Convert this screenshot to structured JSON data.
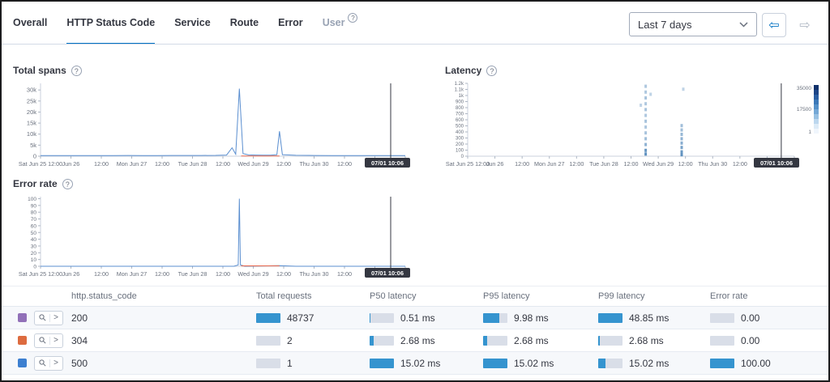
{
  "tabs": {
    "items": [
      {
        "label": "Overall",
        "state": "normal"
      },
      {
        "label": "HTTP Status Code",
        "state": "active"
      },
      {
        "label": "Service",
        "state": "normal"
      },
      {
        "label": "Route",
        "state": "normal"
      },
      {
        "label": "Error",
        "state": "normal"
      },
      {
        "label": "User",
        "state": "disabled",
        "help": "?"
      }
    ]
  },
  "toolbar": {
    "time_range": "Last 7 days",
    "back_icon": "⇦",
    "forward_icon": "⇨"
  },
  "colors": {
    "accent": "#0071C2",
    "bar_fill": "#3594CF",
    "bar_track": "#D9DEE8",
    "line_blue": "#5B8FD0",
    "line_orange": "#E7664C",
    "heat_cell": "#6092C0",
    "cursor": "#343741"
  },
  "chart_data": [
    {
      "id": "total-spans",
      "type": "line",
      "title": "Total spans",
      "help_icon": "?",
      "ymax": 33000,
      "yticks": [
        {
          "v": 30000,
          "label": "30k"
        },
        {
          "v": 25000,
          "label": "25k"
        },
        {
          "v": 20000,
          "label": "20k"
        },
        {
          "v": 15000,
          "label": "15k"
        },
        {
          "v": 10000,
          "label": "10k"
        },
        {
          "v": 5000,
          "label": "5k"
        },
        {
          "v": 0,
          "label": "0"
        }
      ],
      "xlabels": [
        "Sat Jun 25 12:00",
        "Jun 26",
        "12:00",
        "Mon Jun 27",
        "12:00",
        "Tue Jun 28",
        "12:00",
        "Wed Jun 29",
        "12:00",
        "Thu Jun 30",
        "12:00",
        "Jul 01",
        ""
      ],
      "series": [
        {
          "name": "200",
          "color": "#5B8FD0",
          "points": [
            [
              0,
              260
            ],
            [
              0.04,
              300
            ],
            [
              0.08,
              280
            ],
            [
              0.12,
              310
            ],
            [
              0.16,
              290
            ],
            [
              0.2,
              300
            ],
            [
              0.24,
              320
            ],
            [
              0.28,
              300
            ],
            [
              0.32,
              310
            ],
            [
              0.36,
              330
            ],
            [
              0.4,
              320
            ],
            [
              0.44,
              340
            ],
            [
              0.48,
              360
            ],
            [
              0.51,
              500
            ],
            [
              0.525,
              3800
            ],
            [
              0.535,
              900
            ],
            [
              0.545,
              30600
            ],
            [
              0.555,
              1200
            ],
            [
              0.57,
              600
            ],
            [
              0.59,
              500
            ],
            [
              0.61,
              450
            ],
            [
              0.63,
              480
            ],
            [
              0.648,
              700
            ],
            [
              0.655,
              11300
            ],
            [
              0.663,
              700
            ],
            [
              0.7,
              400
            ],
            [
              0.75,
              330
            ],
            [
              0.8,
              300
            ],
            [
              0.85,
              290
            ],
            [
              0.9,
              280
            ],
            [
              0.96,
              270
            ],
            [
              1,
              260
            ]
          ]
        },
        {
          "name": "304",
          "color": "#E7664C",
          "points": [
            [
              0.55,
              60
            ],
            [
              0.6,
              60
            ],
            [
              0.655,
              60
            ]
          ]
        }
      ],
      "cursor": {
        "frac": 0.96,
        "badge": "07/01 10:06"
      }
    },
    {
      "id": "latency",
      "type": "heatmap",
      "title": "Latency",
      "help_icon": "?",
      "yticks": [
        "1.2k",
        "1.1k",
        "1k",
        "900",
        "800",
        "700",
        "600",
        "500",
        "400",
        "300",
        "200",
        "100",
        "0"
      ],
      "xlabels": [
        "Sat Jun 25 12:00",
        "Jun 26",
        "12:00",
        "Mon Jun 27",
        "12:00",
        "Tue Jun 28",
        "12:00",
        "Wed Jun 29",
        "12:00",
        "Thu Jun 30",
        "12:00",
        "Jul 01",
        ""
      ],
      "cells": [
        [
          0.545,
          0.04,
          0.5
        ],
        [
          0.545,
          0.12,
          0.5
        ],
        [
          0.545,
          0.2,
          0.55
        ],
        [
          0.545,
          0.28,
          0.5
        ],
        [
          0.545,
          0.36,
          0.55
        ],
        [
          0.545,
          0.44,
          0.5
        ],
        [
          0.545,
          0.52,
          0.55
        ],
        [
          0.545,
          0.6,
          0.5
        ],
        [
          0.545,
          0.68,
          0.55
        ],
        [
          0.545,
          0.76,
          0.6
        ],
        [
          0.545,
          0.84,
          0.7
        ],
        [
          0.545,
          0.92,
          0.95
        ],
        [
          0.545,
          0.97,
          1
        ],
        [
          0.655,
          0.58,
          0.6
        ],
        [
          0.655,
          0.64,
          0.6
        ],
        [
          0.655,
          0.7,
          0.65
        ],
        [
          0.655,
          0.76,
          0.7
        ],
        [
          0.655,
          0.82,
          0.75
        ],
        [
          0.655,
          0.88,
          0.85
        ],
        [
          0.655,
          0.94,
          0.95
        ],
        [
          0.655,
          0.98,
          1
        ],
        [
          0.53,
          0.3,
          0.4
        ],
        [
          0.56,
          0.15,
          0.4
        ],
        [
          0.66,
          0.08,
          0.4
        ]
      ],
      "legend": {
        "max": "35000",
        "mid": "17500",
        "min": "1"
      },
      "cursor": {
        "frac": 0.96,
        "badge": "07/01 10:06"
      }
    },
    {
      "id": "error-rate",
      "type": "line",
      "title": "Error rate",
      "help_icon": "?",
      "ymax": 103,
      "yticks": [
        {
          "v": 100,
          "label": "100"
        },
        {
          "v": 90,
          "label": "90"
        },
        {
          "v": 80,
          "label": "80"
        },
        {
          "v": 70,
          "label": "70"
        },
        {
          "v": 60,
          "label": "60"
        },
        {
          "v": 50,
          "label": "50"
        },
        {
          "v": 40,
          "label": "40"
        },
        {
          "v": 30,
          "label": "30"
        },
        {
          "v": 20,
          "label": "20"
        },
        {
          "v": 10,
          "label": "10"
        },
        {
          "v": 0,
          "label": "0"
        }
      ],
      "xlabels": [
        "Sat Jun 25 12:00",
        "Jun 26",
        "12:00",
        "Mon Jun 27",
        "12:00",
        "Tue Jun 28",
        "12:00",
        "Wed Jun 29",
        "12:00",
        "Thu Jun 30",
        "12:00",
        "Jul 01",
        ""
      ],
      "series": [
        {
          "name": "error",
          "color": "#5B8FD0",
          "points": [
            [
              0,
              0
            ],
            [
              0.1,
              0
            ],
            [
              0.2,
              0
            ],
            [
              0.3,
              0
            ],
            [
              0.4,
              0
            ],
            [
              0.5,
              0
            ],
            [
              0.53,
              0
            ],
            [
              0.542,
              2
            ],
            [
              0.545,
              100
            ],
            [
              0.548,
              2
            ],
            [
              0.56,
              0
            ],
            [
              0.655,
              1
            ],
            [
              0.7,
              0
            ],
            [
              0.8,
              0
            ],
            [
              0.9,
              0
            ],
            [
              1,
              0
            ]
          ]
        },
        {
          "name": "304",
          "color": "#E7664C",
          "points": [
            [
              0.55,
              0.6
            ],
            [
              0.6,
              0.6
            ],
            [
              0.655,
              0.6
            ]
          ]
        }
      ],
      "cursor": {
        "frac": 0.96,
        "badge": "07/01 10:06"
      }
    }
  ],
  "table": {
    "headers": [
      "http.status_code",
      "Total requests",
      "P50 latency",
      "P95 latency",
      "P99 latency",
      "Error rate"
    ],
    "filter_button": {
      "chevron": ">"
    },
    "rows": [
      {
        "swatch": "#9170B8",
        "status_code": "200",
        "metrics": {
          "total_requests": {
            "value": 48737,
            "display": "48737"
          },
          "p50": {
            "value": 0.51,
            "display": "0.51 ms"
          },
          "p95": {
            "value": 9.98,
            "display": "9.98 ms"
          },
          "p99": {
            "value": 48.85,
            "display": "48.85 ms"
          },
          "error_rate": {
            "value": 0,
            "display": "0.00"
          }
        }
      },
      {
        "swatch": "#DD6B3F",
        "status_code": "304",
        "metrics": {
          "total_requests": {
            "value": 2,
            "display": "2"
          },
          "p50": {
            "value": 2.68,
            "display": "2.68 ms"
          },
          "p95": {
            "value": 2.68,
            "display": "2.68 ms"
          },
          "p99": {
            "value": 2.68,
            "display": "2.68 ms"
          },
          "error_rate": {
            "value": 0,
            "display": "0.00"
          }
        }
      },
      {
        "swatch": "#3C7FD0",
        "status_code": "500",
        "metrics": {
          "total_requests": {
            "value": 1,
            "display": "1"
          },
          "p50": {
            "value": 15.02,
            "display": "15.02 ms"
          },
          "p95": {
            "value": 15.02,
            "display": "15.02 ms"
          },
          "p99": {
            "value": 15.02,
            "display": "15.02 ms"
          },
          "error_rate": {
            "value": 100,
            "display": "100.00"
          }
        }
      }
    ]
  }
}
